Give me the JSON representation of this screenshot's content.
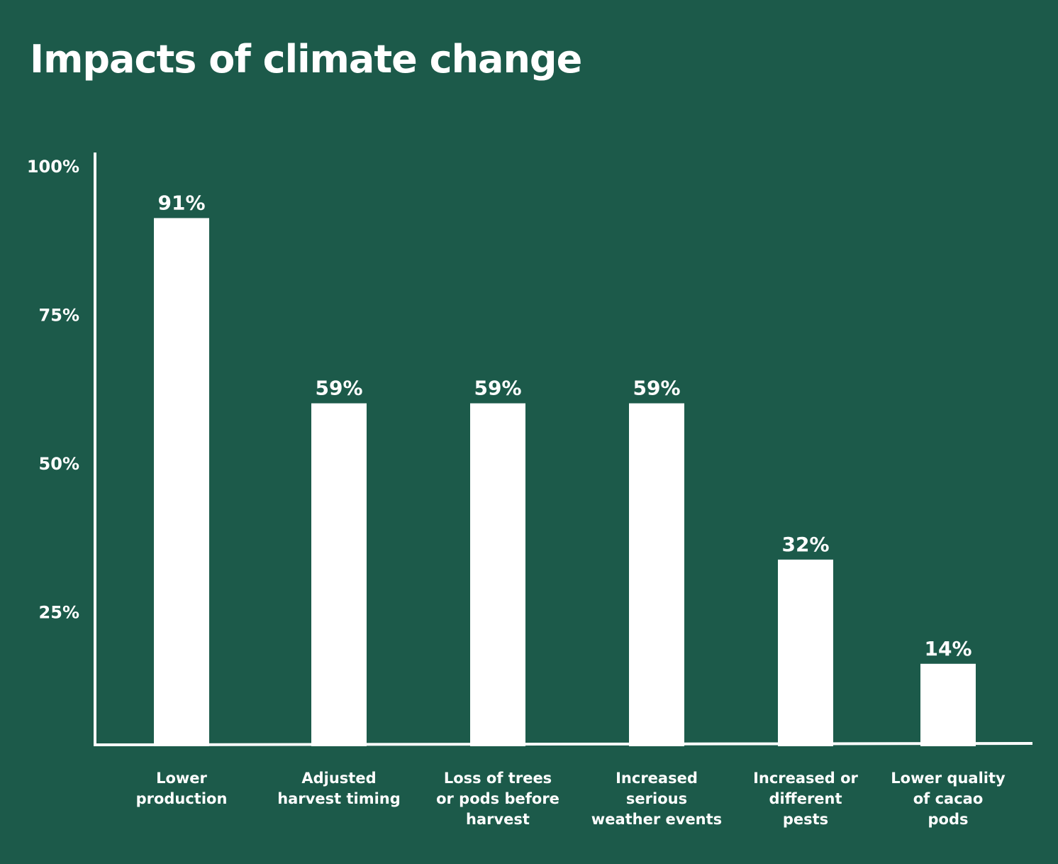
{
  "chart_data": {
    "type": "bar",
    "title": "Impacts of climate change",
    "xlabel": "",
    "ylabel": "",
    "ylim": [
      0,
      100
    ],
    "yticks": [
      25,
      50,
      75,
      100
    ],
    "ytick_labels": [
      "25%",
      "50%",
      "75%",
      "100%"
    ],
    "grid": false,
    "categories": [
      [
        "Lower",
        "production"
      ],
      [
        "Adjusted",
        "harvest timing"
      ],
      [
        "Loss of trees",
        "or pods before",
        "harvest"
      ],
      [
        "Increased",
        "serious",
        "weather events"
      ],
      [
        "Increased or",
        "different",
        "pests"
      ],
      [
        "Lower quality",
        "of cacao",
        "pods"
      ]
    ],
    "values": [
      91,
      59,
      59,
      59,
      32,
      14
    ],
    "data_labels": [
      "91%",
      "59%",
      "59%",
      "59%",
      "32%",
      "14%"
    ]
  },
  "colors": {
    "background": "#1c5a4a",
    "bar": "#ffffff",
    "text": "#ffffff",
    "axis": "#ffffff"
  }
}
